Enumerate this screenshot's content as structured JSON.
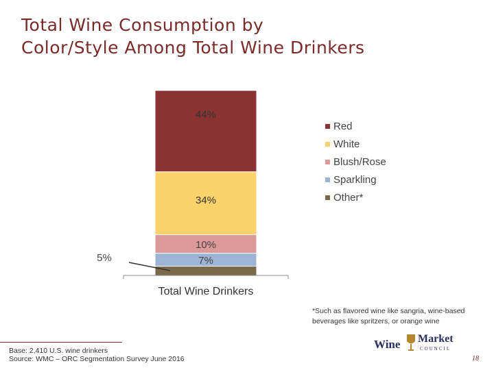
{
  "title_lines": [
    "Total Wine Consumption by",
    "Color/Style Among Total Wine Drinkers"
  ],
  "chart_data": {
    "type": "bar",
    "stacked": true,
    "categories": [
      "Total Wine Drinkers"
    ],
    "series": [
      {
        "name": "Red",
        "values": [
          44
        ],
        "label": "44%",
        "color": "#8b3232"
      },
      {
        "name": "White",
        "values": [
          34
        ],
        "label": "34%",
        "color": "#fcd26b"
      },
      {
        "name": "Blush/Rose",
        "values": [
          10
        ],
        "label": "10%",
        "color": "#dd9898"
      },
      {
        "name": "Sparkling",
        "values": [
          7
        ],
        "label": "7%",
        "color": "#9eb4d4"
      },
      {
        "name": "Other*",
        "values": [
          5
        ],
        "label": "5%",
        "color": "#7a6a4a"
      }
    ],
    "ylim": [
      0,
      100
    ],
    "legend_position": "right"
  },
  "footnote": "*Such as flavored wine like sangria, wine-based beverages like spritzers, or orange wine",
  "source_lines": [
    "Base: 2,410 U.S. wine drinkers",
    "Source: WMC – ORC Segmentation Survey June 2016"
  ],
  "logo": {
    "wine": "Wine",
    "market": "Market",
    "council": "COUNCIL"
  },
  "page_number": "18"
}
